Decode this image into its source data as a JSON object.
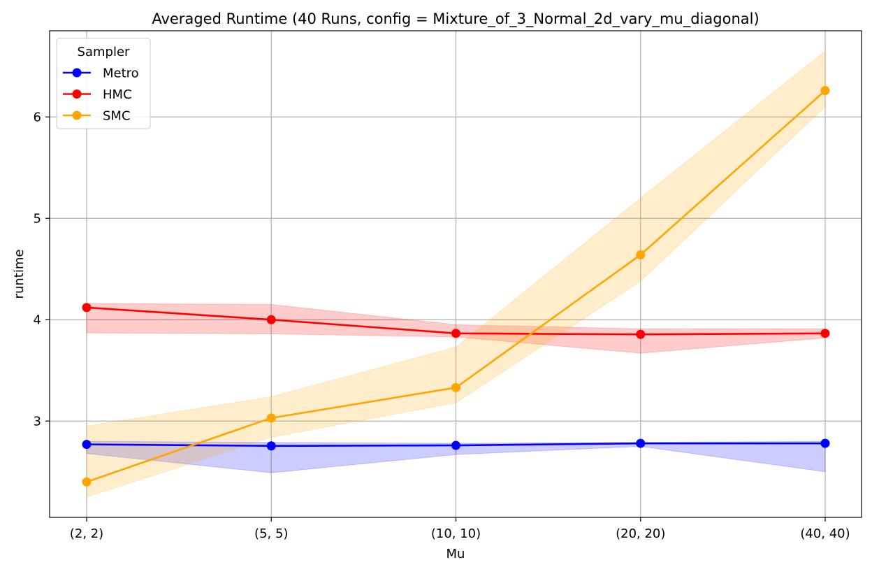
{
  "chart_data": {
    "type": "line",
    "title": "Averaged Runtime (40 Runs, config = Mixture_of_3_Normal_2d_vary_mu_diagonal)",
    "xlabel": "Mu",
    "ylabel": "runtime",
    "categories": [
      "(2, 2)",
      "(5, 5)",
      "(10, 10)",
      "(20, 20)",
      "(40, 40)"
    ],
    "ylim": [
      2.05,
      6.85
    ],
    "yticks": [
      3,
      4,
      5,
      6
    ],
    "grid": true,
    "legend": {
      "title": "Sampler",
      "placement": "top-left"
    },
    "series": [
      {
        "name": "Metro",
        "color": "#0000ff",
        "values": [
          2.77,
          2.755,
          2.76,
          2.78,
          2.78
        ],
        "band_low": [
          2.68,
          2.49,
          2.67,
          2.75,
          2.5
        ],
        "band_high": [
          2.8,
          2.79,
          2.78,
          2.79,
          2.8
        ]
      },
      {
        "name": "HMC",
        "color": "#ff0000",
        "values": [
          4.12,
          4.0,
          3.865,
          3.855,
          3.865
        ],
        "band_low": [
          3.87,
          3.86,
          3.83,
          3.67,
          3.82
        ],
        "band_high": [
          4.16,
          4.15,
          3.95,
          3.91,
          3.91
        ]
      },
      {
        "name": "SMC",
        "color": "#ffa500",
        "values": [
          2.4,
          3.03,
          3.33,
          4.64,
          6.26
        ],
        "band_low": [
          2.25,
          2.84,
          3.18,
          4.38,
          6.1
        ],
        "band_high": [
          2.95,
          3.24,
          3.73,
          5.2,
          6.65
        ]
      }
    ]
  }
}
